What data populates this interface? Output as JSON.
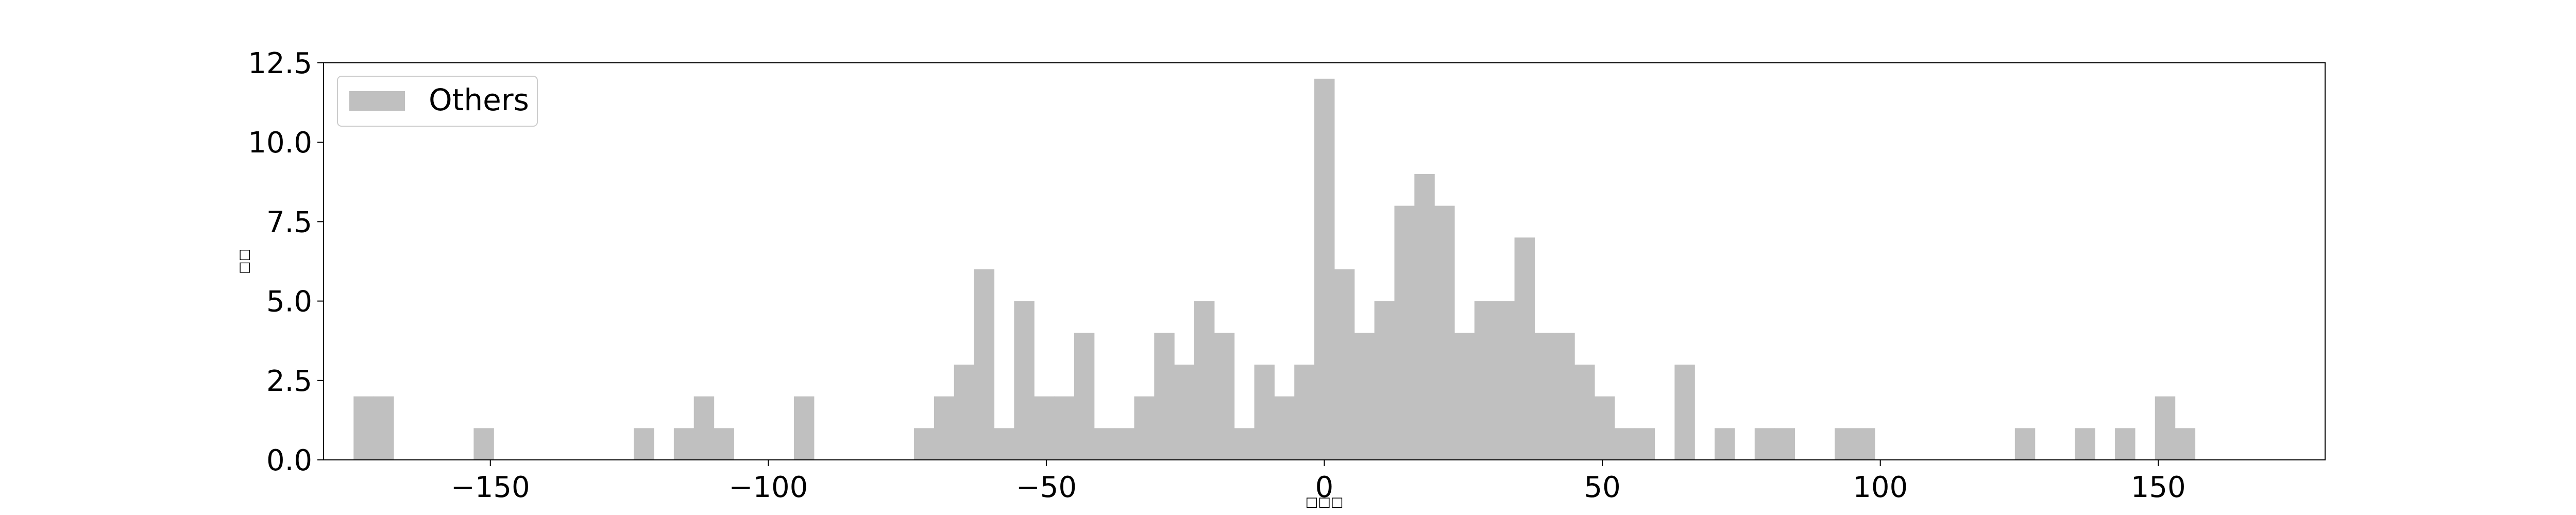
{
  "chart_data": {
    "type": "bar",
    "title": "",
    "xlabel": "□□□",
    "ylabel": "□□",
    "xlim": [
      -180,
      180
    ],
    "ylim": [
      0,
      12.5
    ],
    "bin_width": 3.6,
    "x_ticks": [
      -150,
      -100,
      -50,
      0,
      50,
      100,
      150
    ],
    "x_tick_labels": [
      "−150",
      "−100",
      "−50",
      "0",
      "50",
      "100",
      "150"
    ],
    "y_ticks": [
      0,
      2.5,
      5,
      7.5,
      10,
      12.5
    ],
    "y_tick_labels": [
      "0.0",
      "2.5",
      "5.0",
      "7.5",
      "10.0",
      "12.5"
    ],
    "grid": false,
    "legend_position": "top-left",
    "series": [
      {
        "name": "Others",
        "color": "#c0c0c0",
        "bins": [
          {
            "x0": -174.6,
            "value": 2
          },
          {
            "x0": -171.0,
            "value": 2
          },
          {
            "x0": -153.0,
            "value": 1
          },
          {
            "x0": -124.2,
            "value": 1
          },
          {
            "x0": -117.0,
            "value": 1
          },
          {
            "x0": -113.4,
            "value": 2
          },
          {
            "x0": -109.8,
            "value": 1
          },
          {
            "x0": -95.4,
            "value": 2
          },
          {
            "x0": -73.8,
            "value": 1
          },
          {
            "x0": -70.2,
            "value": 2
          },
          {
            "x0": -66.6,
            "value": 3
          },
          {
            "x0": -63.0,
            "value": 6
          },
          {
            "x0": -59.4,
            "value": 1
          },
          {
            "x0": -55.8,
            "value": 5
          },
          {
            "x0": -52.2,
            "value": 2
          },
          {
            "x0": -48.6,
            "value": 2
          },
          {
            "x0": -45.0,
            "value": 4
          },
          {
            "x0": -41.4,
            "value": 1
          },
          {
            "x0": -37.8,
            "value": 1
          },
          {
            "x0": -34.2,
            "value": 2
          },
          {
            "x0": -30.6,
            "value": 4
          },
          {
            "x0": -27.0,
            "value": 3
          },
          {
            "x0": -23.4,
            "value": 5
          },
          {
            "x0": -19.8,
            "value": 4
          },
          {
            "x0": -16.2,
            "value": 1
          },
          {
            "x0": -12.6,
            "value": 3
          },
          {
            "x0": -9.0,
            "value": 2
          },
          {
            "x0": -5.4,
            "value": 3
          },
          {
            "x0": -1.8,
            "value": 12
          },
          {
            "x0": 1.8,
            "value": 6
          },
          {
            "x0": 5.4,
            "value": 4
          },
          {
            "x0": 9.0,
            "value": 5
          },
          {
            "x0": 12.6,
            "value": 8
          },
          {
            "x0": 16.2,
            "value": 9
          },
          {
            "x0": 19.8,
            "value": 8
          },
          {
            "x0": 23.4,
            "value": 4
          },
          {
            "x0": 27.0,
            "value": 5
          },
          {
            "x0": 30.6,
            "value": 5
          },
          {
            "x0": 34.2,
            "value": 7
          },
          {
            "x0": 37.8,
            "value": 4
          },
          {
            "x0": 41.4,
            "value": 4
          },
          {
            "x0": 45.0,
            "value": 3
          },
          {
            "x0": 48.6,
            "value": 2
          },
          {
            "x0": 52.2,
            "value": 1
          },
          {
            "x0": 55.8,
            "value": 1
          },
          {
            "x0": 63.0,
            "value": 3
          },
          {
            "x0": 70.2,
            "value": 1
          },
          {
            "x0": 77.4,
            "value": 1
          },
          {
            "x0": 81.0,
            "value": 1
          },
          {
            "x0": 91.8,
            "value": 1
          },
          {
            "x0": 95.4,
            "value": 1
          },
          {
            "x0": 124.2,
            "value": 1
          },
          {
            "x0": 135.0,
            "value": 1
          },
          {
            "x0": 142.2,
            "value": 1
          },
          {
            "x0": 149.4,
            "value": 2
          },
          {
            "x0": 153.0,
            "value": 1
          }
        ]
      }
    ]
  }
}
